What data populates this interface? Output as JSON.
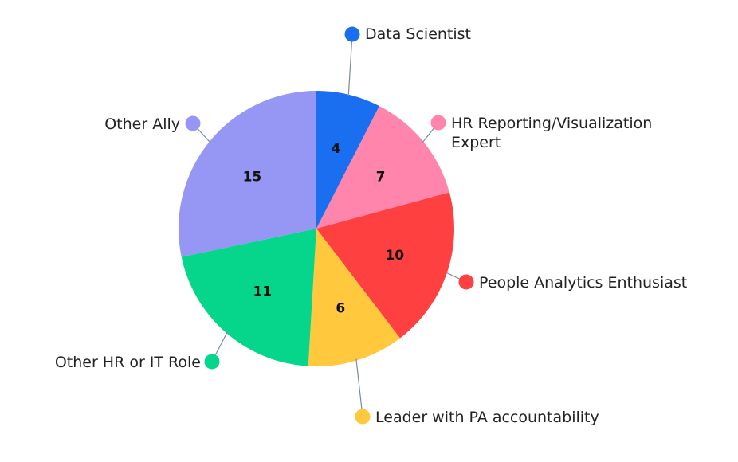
{
  "chart_data": {
    "type": "pie",
    "title": "",
    "start_angle_deg": 0,
    "direction": "clockwise",
    "slices": [
      {
        "label": "Data Scientist",
        "value": 4,
        "color": "#1a6ff0"
      },
      {
        "label": "HR Reporting/Visualization Expert",
        "value": 7,
        "color": "#ff85ad"
      },
      {
        "label": "People Analytics Enthusiast",
        "value": 10,
        "color": "#ff4040"
      },
      {
        "label": "Leader with PA accountability",
        "value": 6,
        "color": "#ffc83d"
      },
      {
        "label": "Other HR or IT Role",
        "value": 11,
        "color": "#05d68c"
      },
      {
        "label": "Other Ally",
        "value": 15,
        "color": "#9696f5"
      }
    ],
    "legend": "callouts",
    "leader_line_color": "#7a8aa0"
  }
}
